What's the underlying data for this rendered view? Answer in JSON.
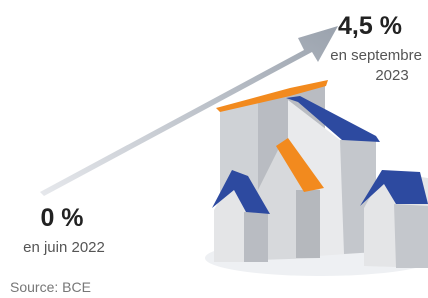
{
  "start": {
    "value": "0 %",
    "label": "en juin 2022"
  },
  "end": {
    "value": "4,5 %",
    "label_lines": [
      "en septembre",
      "2023"
    ]
  },
  "source": "Source: BCE"
}
